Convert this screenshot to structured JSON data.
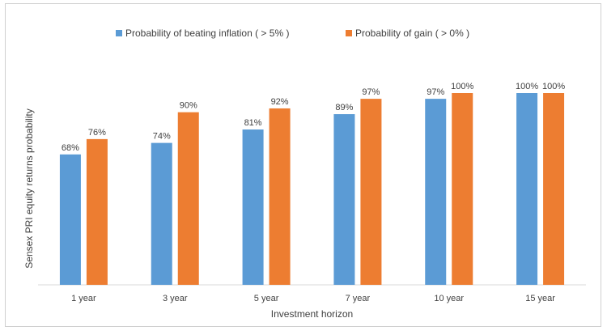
{
  "chart_data": {
    "type": "bar",
    "title": "",
    "xlabel": "Investment horizon",
    "ylabel": "Sensex PRI equity returns probability",
    "categories": [
      "1 year",
      "3 year",
      "5 year",
      "7 year",
      "10 year",
      "15 year"
    ],
    "series": [
      {
        "name": "Probability of beating inflation ( > 5% )",
        "values": [
          68,
          74,
          81,
          89,
          97,
          100
        ],
        "color": "#5b9bd5"
      },
      {
        "name": "Probability of gain ( > 0% )",
        "values": [
          76,
          90,
          92,
          97,
          100,
          100
        ],
        "color": "#ed7d31"
      }
    ],
    "value_suffix": "%",
    "ylim": [
      0,
      100
    ],
    "grid": false,
    "legend_placement": "top"
  }
}
